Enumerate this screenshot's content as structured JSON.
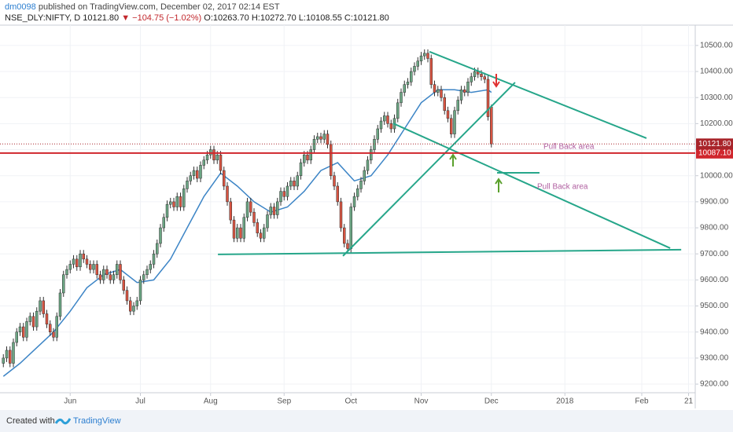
{
  "header": {
    "author": "dm0098",
    "published": "published on TradingView.com, December 02, 2017 02:14 EST",
    "symbol": "NSE_DLY:NIFTY, D",
    "last": "10121.80",
    "change": "▼ −104.75 (−1.02%)",
    "ohlc": "O:10263.70 H:10272.70 L:10108.55 C:10121.80"
  },
  "footer": {
    "created_with": "Created with",
    "brand": "TradingView"
  },
  "chart_data": {
    "type": "candlestick",
    "up_color": "#6ba583",
    "down_color": "#d75442",
    "open": [
      9280,
      9300,
      9330,
      9280,
      9360,
      9400,
      9420,
      9380,
      9440,
      9460,
      9420,
      9480,
      9520,
      9470,
      9430,
      9400,
      9380,
      9460,
      9550,
      9620,
      9640,
      9660,
      9680,
      9650,
      9700,
      9680,
      9660,
      9640,
      9660,
      9620,
      9600,
      9640,
      9620,
      9600,
      9620,
      9660,
      9600,
      9560,
      9520,
      9480,
      9500,
      9520,
      9600,
      9620,
      9640,
      9660,
      9700,
      9740,
      9800,
      9840,
      9890,
      9900,
      9880,
      9920,
      9880,
      9950,
      9980,
      10000,
      10020,
      9990,
      10040,
      10060,
      10080,
      10100,
      10060,
      10080,
      10020,
      9960,
      9900,
      9830,
      9760,
      9800,
      9760,
      9840,
      9900,
      9860,
      9820,
      9780,
      9760,
      9800,
      9850,
      9880,
      9850,
      9900,
      9940,
      9920,
      9960,
      9980,
      9960,
      10000,
      10050,
      10080,
      10060,
      10100,
      10140,
      10150,
      10140,
      10160,
      10120,
      10000,
      9960,
      9900,
      9800,
      9740,
      9720,
      9880,
      9920,
      9950,
      9980,
      10020,
      10060,
      10100,
      10140,
      10180,
      10210,
      10230,
      10200,
      10180,
      10220,
      10280,
      10320,
      10350,
      10360,
      10400,
      10420,
      10440,
      10460,
      10470,
      10450,
      10350,
      10320,
      10330,
      10300,
      10250,
      10220,
      10160,
      10250,
      10290,
      10330,
      10320,
      10360,
      10380,
      10400,
      10390,
      10380,
      10370,
      10263.7
    ],
    "high": [
      9315,
      9345,
      9345,
      9375,
      9415,
      9435,
      9435,
      9455,
      9475,
      9475,
      9495,
      9535,
      9535,
      9485,
      9445,
      9415,
      9475,
      9565,
      9635,
      9655,
      9675,
      9695,
      9695,
      9715,
      9715,
      9695,
      9675,
      9675,
      9675,
      9635,
      9655,
      9655,
      9635,
      9635,
      9675,
      9675,
      9615,
      9575,
      9535,
      9515,
      9535,
      9615,
      9635,
      9655,
      9675,
      9715,
      9755,
      9815,
      9855,
      9905,
      9915,
      9915,
      9935,
      9935,
      9965,
      9995,
      10015,
      10035,
      10035,
      10055,
      10075,
      10095,
      10115,
      10115,
      10095,
      10095,
      10035,
      9975,
      9915,
      9845,
      9815,
      9815,
      9855,
      9915,
      9915,
      9875,
      9835,
      9795,
      9815,
      9865,
      9895,
      9895,
      9915,
      9955,
      9955,
      9975,
      9995,
      9995,
      10015,
      10065,
      10095,
      10095,
      10115,
      10155,
      10165,
      10165,
      10175,
      10175,
      10135,
      10015,
      9975,
      9915,
      9815,
      9755,
      9895,
      9935,
      9965,
      9995,
      10035,
      10075,
      10115,
      10155,
      10195,
      10225,
      10245,
      10245,
      10215,
      10235,
      10295,
      10335,
      10365,
      10375,
      10415,
      10435,
      10455,
      10475,
      10485,
      10485,
      10465,
      10365,
      10345,
      10345,
      10315,
      10265,
      10235,
      10265,
      10305,
      10345,
      10345,
      10375,
      10395,
      10415,
      10415,
      10405,
      10395,
      10385,
      10272.7
    ],
    "low": [
      9265,
      9285,
      9265,
      9265,
      9345,
      9385,
      9365,
      9365,
      9425,
      9405,
      9405,
      9465,
      9455,
      9415,
      9385,
      9365,
      9365,
      9445,
      9535,
      9605,
      9625,
      9645,
      9635,
      9635,
      9665,
      9645,
      9625,
      9625,
      9605,
      9585,
      9585,
      9605,
      9585,
      9585,
      9605,
      9585,
      9545,
      9505,
      9465,
      9465,
      9485,
      9505,
      9585,
      9605,
      9625,
      9645,
      9685,
      9725,
      9785,
      9825,
      9875,
      9865,
      9865,
      9865,
      9865,
      9935,
      9965,
      9985,
      9975,
      9975,
      10025,
      10045,
      10065,
      10045,
      10045,
      10005,
      9945,
      9885,
      9815,
      9745,
      9745,
      9745,
      9745,
      9825,
      9845,
      9805,
      9765,
      9745,
      9745,
      9785,
      9835,
      9835,
      9835,
      9885,
      9905,
      9905,
      9945,
      9945,
      9945,
      9985,
      10035,
      10045,
      10045,
      10085,
      10125,
      10125,
      10125,
      10105,
      9985,
      9945,
      9885,
      9785,
      9725,
      9705,
      9705,
      9865,
      9905,
      9935,
      9965,
      10005,
      10045,
      10085,
      10125,
      10165,
      10195,
      10185,
      10165,
      10165,
      10205,
      10265,
      10305,
      10335,
      10345,
      10385,
      10405,
      10425,
      10445,
      10435,
      10335,
      10305,
      10305,
      10285,
      10235,
      10205,
      10145,
      10145,
      10235,
      10275,
      10305,
      10305,
      10345,
      10365,
      10375,
      10365,
      10355,
      10211.55,
      10108.55
    ],
    "close": [
      9300,
      9330,
      9280,
      9360,
      9400,
      9420,
      9380,
      9440,
      9460,
      9420,
      9480,
      9520,
      9470,
      9430,
      9400,
      9380,
      9460,
      9550,
      9620,
      9640,
      9660,
      9680,
      9650,
      9700,
      9680,
      9660,
      9640,
      9660,
      9620,
      9600,
      9640,
      9620,
      9600,
      9620,
      9660,
      9600,
      9560,
      9520,
      9480,
      9500,
      9520,
      9600,
      9620,
      9640,
      9660,
      9700,
      9740,
      9800,
      9840,
      9890,
      9900,
      9880,
      9920,
      9880,
      9950,
      9980,
      10000,
      10020,
      9990,
      10040,
      10060,
      10080,
      10100,
      10060,
      10080,
      10020,
      9960,
      9900,
      9830,
      9760,
      9800,
      9760,
      9840,
      9900,
      9860,
      9820,
      9780,
      9760,
      9800,
      9850,
      9880,
      9850,
      9900,
      9940,
      9920,
      9960,
      9980,
      9960,
      10000,
      10050,
      10080,
      10060,
      10100,
      10140,
      10150,
      10140,
      10160,
      10120,
      10000,
      9960,
      9900,
      9800,
      9740,
      9720,
      9880,
      9920,
      9950,
      9980,
      10020,
      10060,
      10100,
      10140,
      10180,
      10210,
      10230,
      10200,
      10180,
      10220,
      10280,
      10320,
      10350,
      10360,
      10400,
      10420,
      10440,
      10460,
      10470,
      10450,
      10350,
      10320,
      10330,
      10300,
      10250,
      10220,
      10160,
      10250,
      10290,
      10330,
      10320,
      10360,
      10380,
      10400,
      10390,
      10380,
      10370,
      10226.55,
      10121.8
    ],
    "ma": {
      "color": "#3d85c6",
      "x": [
        0,
        5,
        10,
        15,
        20,
        25,
        30,
        35,
        40,
        45,
        50,
        55,
        60,
        65,
        70,
        75,
        80,
        85,
        90,
        95,
        100,
        105,
        110,
        115,
        120,
        125,
        130,
        135,
        140,
        145,
        146
      ],
      "values": [
        9230,
        9280,
        9340,
        9400,
        9480,
        9570,
        9620,
        9640,
        9590,
        9600,
        9680,
        9800,
        9920,
        10010,
        9960,
        9900,
        9860,
        9880,
        9940,
        10020,
        10050,
        9980,
        10000,
        10080,
        10180,
        10280,
        10330,
        10330,
        10320,
        10330,
        10320
      ]
    },
    "trendline_color": "#26a68a",
    "trendlines": [
      {
        "x": [
          127.5,
          192.4
        ],
        "y": [
          10476,
          10144
        ]
      },
      {
        "x": [
          101.6,
          153.1
        ],
        "y": [
          9692,
          10358
        ]
      },
      {
        "x": [
          116.6,
          199.5
        ],
        "y": [
          10201,
          9722
        ]
      },
      {
        "x": [
          64.2,
          202.8
        ],
        "y": [
          9698,
          9716
        ]
      },
      {
        "x": [
          147.7,
          160.4
        ],
        "y": [
          10011,
          10011
        ]
      }
    ],
    "hline": {
      "value": 10087.1,
      "label": "10087.10",
      "color": "#d0262d"
    },
    "last_label": {
      "value": 10121.8,
      "label": "10121.80",
      "color": "#a8242a"
    },
    "annotations": [
      "Pull Back area",
      "Pull Back area"
    ],
    "xlim": [
      -1,
      207
    ],
    "ylim": [
      9167,
      10578
    ],
    "grid": true,
    "xticks": [
      {
        "value": 20,
        "label": "Jun"
      },
      {
        "value": 41,
        "label": "Jul"
      },
      {
        "value": 62,
        "label": "Aug"
      },
      {
        "value": 84,
        "label": "Sep"
      },
      {
        "value": 104,
        "label": "Oct"
      },
      {
        "value": 125,
        "label": "Nov"
      },
      {
        "value": 146,
        "label": "Dec"
      },
      {
        "value": 168,
        "label": "2018"
      },
      {
        "value": 191,
        "label": "Feb"
      },
      {
        "value": 205,
        "label": "21"
      }
    ],
    "yticks": [
      {
        "value": 9200,
        "label": "9200.00"
      },
      {
        "value": 9300,
        "label": "9300.00"
      },
      {
        "value": 9400,
        "label": "9400.00"
      },
      {
        "value": 9500,
        "label": "9500.00"
      },
      {
        "value": 9600,
        "label": "9600.00"
      },
      {
        "value": 9700,
        "label": "9700.00"
      },
      {
        "value": 9800,
        "label": "9800.00"
      },
      {
        "value": 9900,
        "label": "9900.00"
      },
      {
        "value": 10000,
        "label": "10000.00"
      },
      {
        "value": 10100,
        "label": "10100.00"
      },
      {
        "value": 10200,
        "label": "10200.00"
      },
      {
        "value": 10300,
        "label": "10300.00"
      },
      {
        "value": 10400,
        "label": "10400.00"
      },
      {
        "value": 10500,
        "label": "10500.00"
      }
    ]
  }
}
